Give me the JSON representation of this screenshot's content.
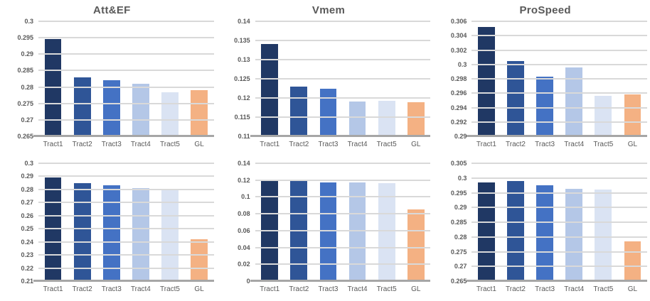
{
  "styles": {
    "bar_colors": [
      "#203864",
      "#2F5597",
      "#4472C4",
      "#B4C7E7",
      "#DAE3F3",
      "#F4B183"
    ],
    "grid_color": "#D9D9D9",
    "axis_color": "#A6A6A6",
    "text_color": "#595959"
  },
  "chart_data": [
    {
      "type": "bar",
      "title": "Att&EF",
      "position": "top-left",
      "categories": [
        "Tract1",
        "Tract2",
        "Tract3",
        "Tract4",
        "Tract5",
        "GL"
      ],
      "values": [
        0.2945,
        0.283,
        0.282,
        0.281,
        0.2785,
        0.279
      ],
      "ylim": [
        0.265,
        0.3
      ],
      "yticks": [
        {
          "value": 0.3,
          "label": "0.3"
        },
        {
          "value": 0.295,
          "label": "0.295"
        },
        {
          "value": 0.29,
          "label": "0.29"
        },
        {
          "value": 0.285,
          "label": "0.285"
        },
        {
          "value": 0.28,
          "label": "0.28"
        },
        {
          "value": 0.275,
          "label": "0.275"
        },
        {
          "value": 0.27,
          "label": "0.27"
        },
        {
          "value": 0.265,
          "label": "0.265"
        }
      ],
      "grid": true,
      "legend": false
    },
    {
      "type": "bar",
      "title": "Vmem",
      "position": "top-middle",
      "categories": [
        "Tract1",
        "Tract2",
        "Tract3",
        "Tract4",
        "Tract5",
        "GL"
      ],
      "values": [
        0.134,
        0.123,
        0.1225,
        0.119,
        0.1193,
        0.1188
      ],
      "ylim": [
        0.11,
        0.14
      ],
      "yticks": [
        {
          "value": 0.14,
          "label": "0.14"
        },
        {
          "value": 0.135,
          "label": "0.135"
        },
        {
          "value": 0.13,
          "label": "0.13"
        },
        {
          "value": 0.125,
          "label": "0.125"
        },
        {
          "value": 0.12,
          "label": "0.12"
        },
        {
          "value": 0.115,
          "label": "0.115"
        },
        {
          "value": 0.11,
          "label": "0.11"
        }
      ],
      "grid": true,
      "legend": false
    },
    {
      "type": "bar",
      "title": "ProSpeed",
      "position": "top-right",
      "categories": [
        "Tract1",
        "Tract2",
        "Tract3",
        "Tract4",
        "Tract5",
        "GL"
      ],
      "values": [
        0.3052,
        0.3005,
        0.2983,
        0.2996,
        0.2956,
        0.2958
      ],
      "ylim": [
        0.29,
        0.306
      ],
      "yticks": [
        {
          "value": 0.306,
          "label": "0.306"
        },
        {
          "value": 0.304,
          "label": "0.304"
        },
        {
          "value": 0.302,
          "label": "0.302"
        },
        {
          "value": 0.3,
          "label": "0.3"
        },
        {
          "value": 0.298,
          "label": "0.298"
        },
        {
          "value": 0.296,
          "label": "0.296"
        },
        {
          "value": 0.294,
          "label": "0.294"
        },
        {
          "value": 0.292,
          "label": "0.292"
        },
        {
          "value": 0.29,
          "label": "0.29"
        }
      ],
      "grid": true,
      "legend": false
    },
    {
      "type": "bar",
      "title": "",
      "position": "bottom-left",
      "categories": [
        "Tract1",
        "Tract2",
        "Tract3",
        "Tract4",
        "Tract5",
        "GL"
      ],
      "values": [
        0.289,
        0.285,
        0.283,
        0.281,
        0.2805,
        0.242
      ],
      "ylim": [
        0.21,
        0.3
      ],
      "yticks": [
        {
          "value": 0.3,
          "label": "0.3"
        },
        {
          "value": 0.29,
          "label": "0.29"
        },
        {
          "value": 0.28,
          "label": "0.28"
        },
        {
          "value": 0.27,
          "label": "0.27"
        },
        {
          "value": 0.26,
          "label": "0.26"
        },
        {
          "value": 0.25,
          "label": "0.25"
        },
        {
          "value": 0.24,
          "label": "0.24"
        },
        {
          "value": 0.23,
          "label": "0.23"
        },
        {
          "value": 0.22,
          "label": "0.22"
        },
        {
          "value": 0.21,
          "label": "0.21"
        }
      ],
      "grid": true,
      "legend": false
    },
    {
      "type": "bar",
      "title": "",
      "position": "bottom-middle",
      "categories": [
        "Tract1",
        "Tract2",
        "Tract3",
        "Tract4",
        "Tract5",
        "GL"
      ],
      "values": [
        0.121,
        0.119,
        0.117,
        0.1173,
        0.1168,
        0.085
      ],
      "ylim": [
        0,
        0.14
      ],
      "yticks": [
        {
          "value": 0.14,
          "label": "0.14"
        },
        {
          "value": 0.12,
          "label": "0.12"
        },
        {
          "value": 0.1,
          "label": "0.1"
        },
        {
          "value": 0.08,
          "label": "0.08"
        },
        {
          "value": 0.06,
          "label": "0.06"
        },
        {
          "value": 0.04,
          "label": "0.04"
        },
        {
          "value": 0.02,
          "label": "0.02"
        },
        {
          "value": 0,
          "label": "0"
        }
      ],
      "grid": true,
      "legend": false
    },
    {
      "type": "bar",
      "title": "",
      "position": "bottom-right",
      "categories": [
        "Tract1",
        "Tract2",
        "Tract3",
        "Tract4",
        "Tract5",
        "GL"
      ],
      "values": [
        0.2985,
        0.299,
        0.2975,
        0.2963,
        0.296,
        0.2785
      ],
      "ylim": [
        0.265,
        0.305
      ],
      "yticks": [
        {
          "value": 0.305,
          "label": "0.305"
        },
        {
          "value": 0.3,
          "label": "0.3"
        },
        {
          "value": 0.295,
          "label": "0.295"
        },
        {
          "value": 0.29,
          "label": "0.29"
        },
        {
          "value": 0.285,
          "label": "0.285"
        },
        {
          "value": 0.28,
          "label": "0.28"
        },
        {
          "value": 0.275,
          "label": "0.275"
        },
        {
          "value": 0.27,
          "label": "0.27"
        },
        {
          "value": 0.265,
          "label": "0.265"
        }
      ],
      "grid": true,
      "legend": false
    }
  ]
}
